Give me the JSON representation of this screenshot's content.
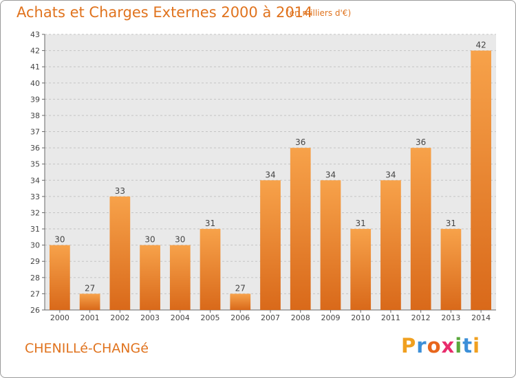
{
  "header": {
    "title": "Achats et Charges Externes 2000 à 2014",
    "unit": "(en milliers d'€)"
  },
  "footer": {
    "commune": "CHENILLé-CHANGé",
    "logo_letters": [
      "P",
      "r",
      "o",
      "x",
      "i",
      "t",
      "i"
    ],
    "logo_colors": [
      "#f0a020",
      "#3c8fd8",
      "#e8661c",
      "#e82c6c",
      "#5aa83c",
      "#3c8fd8",
      "#f0a020"
    ]
  },
  "chart_data": {
    "type": "bar",
    "categories": [
      "2000",
      "2001",
      "2002",
      "2003",
      "2004",
      "2005",
      "2006",
      "2007",
      "2008",
      "2009",
      "2010",
      "2011",
      "2012",
      "2013",
      "2014"
    ],
    "values": [
      30,
      27,
      33,
      30,
      30,
      31,
      27,
      34,
      36,
      34,
      31,
      34,
      36,
      31,
      42
    ],
    "ylim": [
      26,
      43
    ],
    "yticks": [
      26,
      27,
      28,
      29,
      30,
      31,
      32,
      33,
      34,
      35,
      36,
      37,
      38,
      39,
      40,
      41,
      42,
      43
    ],
    "grid": true,
    "bar_color_light": "#f7a24a",
    "bar_color_dark": "#d9691a"
  }
}
